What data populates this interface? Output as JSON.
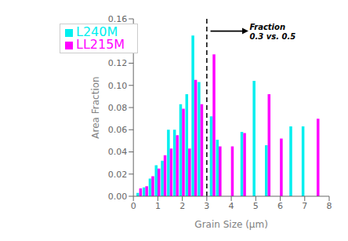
{
  "chart_data": {
    "type": "bar",
    "x": [
      0.25,
      0.5,
      0.75,
      1.0,
      1.25,
      1.5,
      1.75,
      2.0,
      2.25,
      2.5,
      2.75,
      3.25,
      3.5,
      4.0,
      4.5,
      5.0,
      5.5,
      6.0,
      6.5,
      7.0,
      7.5
    ],
    "series": [
      {
        "name": "L240M",
        "color": "#00EFEF",
        "values": [
          0.003,
          0.008,
          0.016,
          0.028,
          0.032,
          0.06,
          0.06,
          0.083,
          0.092,
          0.145,
          0.103,
          0.072,
          0.051,
          null,
          0.058,
          0.104,
          0.046,
          null,
          0.063,
          0.063,
          null
        ]
      },
      {
        "name": "LL215M",
        "color": "#FF00FF",
        "values": [
          0.007,
          0.009,
          0.018,
          0.025,
          0.037,
          0.043,
          0.055,
          0.079,
          0.043,
          0.105,
          0.083,
          0.128,
          0.045,
          0.045,
          0.057,
          null,
          0.092,
          0.052,
          null,
          null,
          0.07
        ]
      }
    ],
    "x_label": "Grain Size (μm)",
    "y_label": "Area Fraction",
    "xlim": [
      0,
      8
    ],
    "xticks": [
      0,
      1,
      2,
      3,
      4,
      5,
      6,
      7,
      8
    ],
    "ylim": [
      0.0,
      0.16
    ],
    "yticks": [
      {
        "value": 0,
        "label": "0.00"
      },
      0.02,
      0.04,
      0.06,
      0.08,
      {
        "value": 0.1,
        "label": "0.10"
      },
      0.12,
      0.14,
      0.16
    ],
    "reference_lines": [
      {
        "x": 3.0,
        "line_style": "dashed"
      }
    ],
    "annotations": [
      {
        "text": "Fraction\n0.3 vs. 0.5",
        "x": 4.75,
        "y": 0.149,
        "arrow_from": [
          3.15,
          0.149
        ],
        "arrow_to": [
          4.7,
          0.149
        ]
      }
    ],
    "legend": "upper left",
    "grid": false
  }
}
